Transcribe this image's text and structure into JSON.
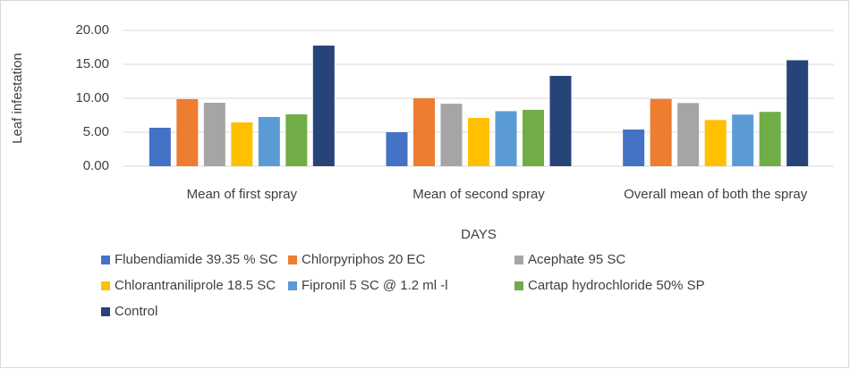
{
  "chart_data": {
    "type": "bar",
    "y_label": "Leaf infestation",
    "x_label": "DAYS",
    "categories": [
      "Mean of first spray",
      "Mean of second spray",
      "Overall mean of both the spray"
    ],
    "series": [
      {
        "name": "Flubendiamide 39.35 % SC",
        "color": "#4472c4",
        "values": [
          5.66,
          5.0,
          5.4
        ]
      },
      {
        "name": "Chlorpyriphos 20 EC",
        "color": "#ed7d31",
        "values": [
          9.87,
          10.0,
          9.9
        ]
      },
      {
        "name": "Acephate 95 SC",
        "color": "#a5a5a5",
        "values": [
          9.34,
          9.2,
          9.3
        ]
      },
      {
        "name": "Chlorantraniliprole 18.5 SC",
        "color": "#ffc000",
        "values": [
          6.45,
          7.1,
          6.8
        ]
      },
      {
        "name": "Fipronil 5 SC @ 1.2 ml -l",
        "color": "#5b9bd5",
        "values": [
          7.24,
          8.1,
          7.6
        ]
      },
      {
        "name": "Cartap hydrochloride 50% SP",
        "color": "#70ad47",
        "values": [
          7.63,
          8.3,
          8.0
        ]
      },
      {
        "name": "Control",
        "color": "#264478",
        "values": [
          17.76,
          13.3,
          15.6
        ]
      }
    ],
    "ylim": [
      0,
      20
    ],
    "yticks": [
      {
        "value": 0,
        "label": "0.00"
      },
      {
        "value": 5,
        "label": "5.00"
      },
      {
        "value": 10,
        "label": "10.00"
      },
      {
        "value": 15,
        "label": "15.00"
      },
      {
        "value": 20,
        "label": "20.00"
      }
    ],
    "grid": true,
    "legend": "bottom"
  }
}
